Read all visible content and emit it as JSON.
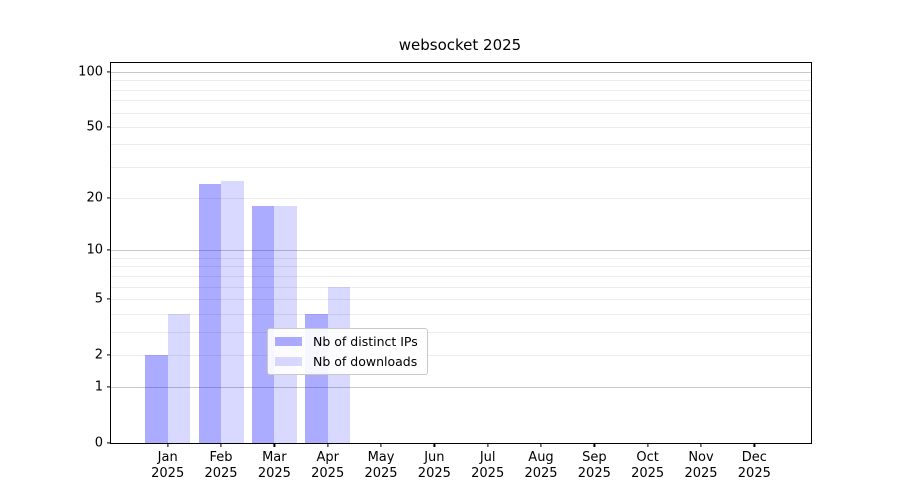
{
  "title": "websocket 2025",
  "chart_data": {
    "type": "bar",
    "title": "websocket 2025",
    "categories": [
      "Jan",
      "Feb",
      "Mar",
      "Apr",
      "May",
      "Jun",
      "Jul",
      "Aug",
      "Sep",
      "Oct",
      "Nov",
      "Dec"
    ],
    "year": "2025",
    "series": [
      {
        "name": "Nb of distinct IPs",
        "color": "rgba(0,0,255,0.33)",
        "color_hex": "#a8a8f6",
        "values": [
          2,
          24,
          18,
          4,
          0,
          0,
          0,
          0,
          0,
          0,
          0,
          0
        ]
      },
      {
        "name": "Nb of downloads",
        "color": "rgba(0,0,255,0.15)",
        "color_hex": "#d9d9fa",
        "values": [
          4,
          25,
          18,
          6,
          0,
          0,
          0,
          0,
          0,
          0,
          0,
          0
        ]
      }
    ],
    "yticks": [
      0,
      1,
      2,
      5,
      10,
      20,
      50,
      100
    ],
    "major_gridlines": [
      1,
      10,
      100
    ],
    "minor_gridlines": [
      2,
      3,
      4,
      5,
      6,
      7,
      8,
      9,
      20,
      30,
      40,
      50,
      60,
      70,
      80,
      90
    ],
    "scale": "log10(value+1)",
    "ylim": [
      0,
      100
    ],
    "xlabel": "",
    "ylabel": "",
    "grid": true,
    "legend_position": "inside-bottom-center",
    "colors": {
      "major_grid": "#c9c9c9",
      "minor_grid": "#ececec",
      "axis": "#000000",
      "background": "#ffffff"
    }
  }
}
